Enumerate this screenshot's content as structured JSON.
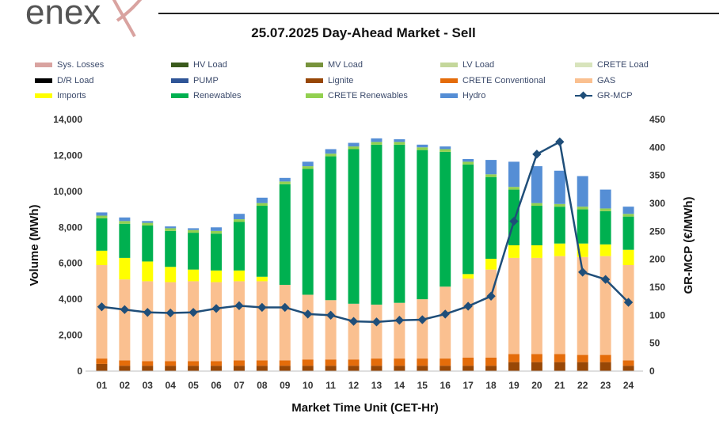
{
  "header": {
    "logo_text": "enex",
    "title": "25.07.2025  Day-Ahead Market - Sell"
  },
  "chart_data": {
    "type": "bar",
    "title": "25.07.2025  Day-Ahead Market - Sell",
    "xlabel": "Market Time Unit (CET-Hr)",
    "ylabel": "Volume (MWh)",
    "y2label": "GR-MCP (€/MWh)",
    "ylim": [
      0,
      14000
    ],
    "y2lim": [
      0,
      450
    ],
    "yticks": [
      "0",
      "2,000",
      "4,000",
      "6,000",
      "8,000",
      "10,000",
      "12,000",
      "14,000"
    ],
    "y2ticks": [
      "0",
      "50",
      "100",
      "150",
      "200",
      "250",
      "300",
      "350",
      "400",
      "450"
    ],
    "categories": [
      "01",
      "02",
      "03",
      "04",
      "05",
      "06",
      "07",
      "08",
      "09",
      "10",
      "11",
      "12",
      "13",
      "14",
      "15",
      "16",
      "17",
      "18",
      "19",
      "20",
      "21",
      "22",
      "23",
      "24"
    ],
    "series": [
      {
        "name": "Sys. Losses",
        "color": "#d9a3a0",
        "values": [
          0,
          0,
          0,
          0,
          0,
          0,
          0,
          0,
          0,
          0,
          0,
          0,
          0,
          0,
          0,
          0,
          0,
          0,
          0,
          0,
          0,
          0,
          0,
          0
        ]
      },
      {
        "name": "HV Load",
        "color": "#3a5a1c",
        "values": [
          0,
          0,
          0,
          0,
          0,
          0,
          0,
          0,
          0,
          0,
          0,
          0,
          0,
          0,
          0,
          0,
          0,
          0,
          0,
          0,
          0,
          0,
          0,
          0
        ]
      },
      {
        "name": "MV Load",
        "color": "#77933c",
        "values": [
          0,
          0,
          0,
          0,
          0,
          0,
          0,
          0,
          0,
          0,
          0,
          0,
          0,
          0,
          0,
          0,
          0,
          0,
          0,
          0,
          0,
          0,
          0,
          0
        ]
      },
      {
        "name": "LV Load",
        "color": "#c4d79b",
        "values": [
          0,
          0,
          0,
          0,
          0,
          0,
          0,
          0,
          0,
          0,
          0,
          0,
          0,
          0,
          0,
          0,
          0,
          0,
          0,
          0,
          0,
          0,
          0,
          0
        ]
      },
      {
        "name": "CRETE Load",
        "color": "#d8e4bc",
        "values": [
          0,
          0,
          0,
          0,
          0,
          0,
          0,
          0,
          0,
          0,
          0,
          0,
          0,
          0,
          0,
          0,
          0,
          0,
          0,
          0,
          0,
          0,
          0,
          0
        ]
      },
      {
        "name": "D/R Load",
        "color": "#000000",
        "values": [
          0,
          0,
          0,
          0,
          0,
          0,
          0,
          0,
          0,
          0,
          0,
          0,
          0,
          0,
          0,
          0,
          0,
          0,
          0,
          0,
          0,
          0,
          0,
          0
        ]
      },
      {
        "name": "PUMP",
        "color": "#2f5597",
        "values": [
          0,
          0,
          0,
          0,
          0,
          0,
          0,
          0,
          0,
          0,
          0,
          0,
          0,
          0,
          0,
          0,
          0,
          0,
          0,
          0,
          0,
          0,
          0,
          0
        ]
      },
      {
        "name": "Lignite",
        "color": "#974706",
        "values": [
          400,
          300,
          300,
          300,
          300,
          300,
          300,
          300,
          300,
          300,
          300,
          300,
          300,
          300,
          300,
          300,
          300,
          300,
          500,
          500,
          500,
          500,
          500,
          300
        ]
      },
      {
        "name": "CRETE Conventional",
        "color": "#e46c0a",
        "values": [
          300,
          300,
          250,
          250,
          250,
          250,
          300,
          300,
          300,
          350,
          350,
          350,
          400,
          400,
          400,
          400,
          450,
          450,
          450,
          450,
          450,
          400,
          400,
          300
        ]
      },
      {
        "name": "GAS",
        "color": "#fac090",
        "values": [
          5200,
          4500,
          4450,
          4400,
          4450,
          4400,
          4400,
          4400,
          4200,
          3600,
          3300,
          3100,
          3000,
          3100,
          3300,
          4000,
          4400,
          4900,
          5350,
          5350,
          5450,
          5450,
          5500,
          5300
        ]
      },
      {
        "name": "Imports",
        "color": "#ffff00",
        "values": [
          800,
          1200,
          1100,
          850,
          650,
          650,
          600,
          250,
          0,
          0,
          0,
          0,
          0,
          0,
          0,
          0,
          250,
          600,
          700,
          700,
          700,
          750,
          650,
          850
        ]
      },
      {
        "name": "Renewables",
        "color": "#00b050",
        "values": [
          1800,
          1900,
          2000,
          2000,
          2050,
          2050,
          2700,
          3950,
          5600,
          7000,
          8000,
          8600,
          8900,
          8800,
          8300,
          7500,
          6100,
          4550,
          3100,
          2200,
          2050,
          1900,
          1850,
          1850
        ]
      },
      {
        "name": "CRETE Renewables",
        "color": "#92d050",
        "values": [
          150,
          150,
          150,
          150,
          150,
          150,
          150,
          150,
          150,
          150,
          150,
          150,
          150,
          150,
          150,
          150,
          150,
          150,
          150,
          150,
          150,
          150,
          150,
          150
        ]
      },
      {
        "name": "Hydro",
        "color": "#558ed5",
        "values": [
          180,
          200,
          100,
          100,
          100,
          200,
          300,
          300,
          200,
          250,
          250,
          200,
          200,
          150,
          150,
          150,
          150,
          800,
          1400,
          2050,
          1850,
          1700,
          1050,
          400
        ]
      }
    ],
    "line": {
      "name": "GR-MCP",
      "color": "#1f4e79",
      "values": [
        115,
        110,
        105,
        104,
        105,
        112,
        117,
        114,
        114,
        102,
        100,
        89,
        88,
        91,
        92,
        102,
        116,
        134,
        268,
        388,
        410,
        177,
        164,
        123
      ]
    }
  }
}
